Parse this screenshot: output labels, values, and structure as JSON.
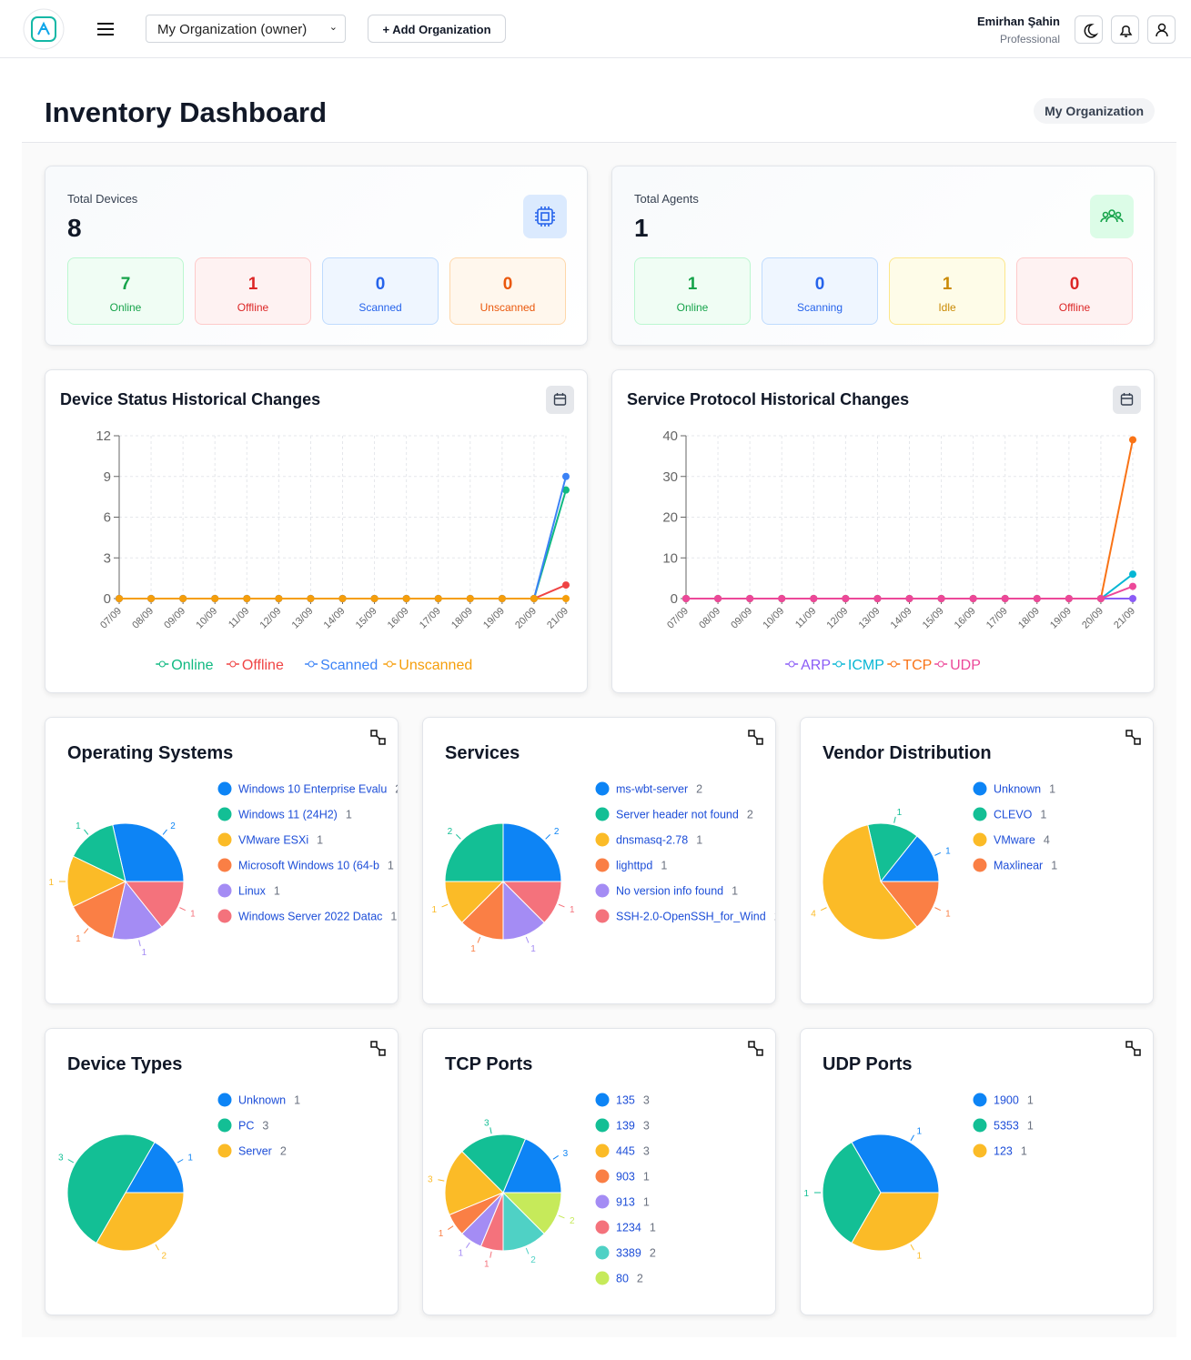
{
  "header": {
    "org_select": "My Organization (owner)",
    "add_button": "+ Add Organization",
    "user_name": "Emirhan Şahin",
    "user_plan": "Professional"
  },
  "page": {
    "title": "Inventory Dashboard",
    "badge": "My Organization"
  },
  "stats": [
    {
      "label": "Total Devices",
      "value": 8,
      "items": [
        {
          "value": 7,
          "label": "Online"
        },
        {
          "value": 1,
          "label": "Offline"
        },
        {
          "value": 0,
          "label": "Scanned"
        },
        {
          "value": 0,
          "label": "Unscanned"
        }
      ]
    },
    {
      "label": "Total Agents",
      "value": 1,
      "items": [
        {
          "value": 1,
          "label": "Online"
        },
        {
          "value": 0,
          "label": "Scanning"
        },
        {
          "value": 1,
          "label": "Idle"
        },
        {
          "value": 0,
          "label": "Offline"
        }
      ]
    }
  ],
  "chart_data": [
    {
      "type": "line",
      "title": "Device Status Historical Changes",
      "x": [
        "07/09",
        "08/09",
        "09/09",
        "10/09",
        "11/09",
        "12/09",
        "13/09",
        "14/09",
        "15/09",
        "16/09",
        "17/09",
        "18/09",
        "19/09",
        "20/09",
        "21/09"
      ],
      "series": [
        {
          "name": "Online",
          "color": "#10b981",
          "values": [
            0,
            0,
            0,
            0,
            0,
            0,
            0,
            0,
            0,
            0,
            0,
            0,
            0,
            0,
            8
          ]
        },
        {
          "name": "Offline",
          "color": "#ef4444",
          "values": [
            0,
            0,
            0,
            0,
            0,
            0,
            0,
            0,
            0,
            0,
            0,
            0,
            0,
            0,
            1
          ]
        },
        {
          "name": "Scanned",
          "color": "#3b82f6",
          "values": [
            0,
            0,
            0,
            0,
            0,
            0,
            0,
            0,
            0,
            0,
            0,
            0,
            0,
            0,
            9
          ]
        },
        {
          "name": "Unscanned",
          "color": "#f59e0b",
          "values": [
            0,
            0,
            0,
            0,
            0,
            0,
            0,
            0,
            0,
            0,
            0,
            0,
            0,
            0,
            0
          ]
        }
      ],
      "ylim": [
        0,
        12
      ],
      "yticks": [
        0,
        3,
        6,
        9,
        12
      ],
      "grid": true,
      "legend": "bottom"
    },
    {
      "type": "line",
      "title": "Service Protocol Historical Changes",
      "x": [
        "07/09",
        "08/09",
        "09/09",
        "10/09",
        "11/09",
        "12/09",
        "13/09",
        "14/09",
        "15/09",
        "16/09",
        "17/09",
        "18/09",
        "19/09",
        "20/09",
        "21/09"
      ],
      "series": [
        {
          "name": "ARP",
          "color": "#8b5cf6",
          "values": [
            0,
            0,
            0,
            0,
            0,
            0,
            0,
            0,
            0,
            0,
            0,
            0,
            0,
            0,
            0
          ]
        },
        {
          "name": "ICMP",
          "color": "#06b6d4",
          "values": [
            0,
            0,
            0,
            0,
            0,
            0,
            0,
            0,
            0,
            0,
            0,
            0,
            0,
            0,
            6
          ]
        },
        {
          "name": "TCP",
          "color": "#f97316",
          "values": [
            0,
            0,
            0,
            0,
            0,
            0,
            0,
            0,
            0,
            0,
            0,
            0,
            0,
            0,
            39
          ]
        },
        {
          "name": "UDP",
          "color": "#ec4899",
          "values": [
            0,
            0,
            0,
            0,
            0,
            0,
            0,
            0,
            0,
            0,
            0,
            0,
            0,
            0,
            3
          ]
        }
      ],
      "ylim": [
        0,
        40
      ],
      "yticks": [
        0,
        10,
        20,
        30,
        40
      ],
      "grid": true,
      "legend": "bottom"
    },
    {
      "type": "pie",
      "title": "Operating Systems",
      "categories": [
        "Windows 10 Enterprise Evalu",
        "Windows 11 (24H2)",
        "VMware ESXi",
        "Microsoft Windows 10 (64-b",
        "Linux",
        "Windows Server 2022 Datac"
      ],
      "values": [
        2,
        1,
        1,
        1,
        1,
        1
      ],
      "colors": [
        "#0d84f5",
        "#13bf95",
        "#fbbb27",
        "#fa7f45",
        "#a48cf4",
        "#f4727c"
      ]
    },
    {
      "type": "pie",
      "title": "Services",
      "categories": [
        "ms-wbt-server",
        "Server header not found",
        "dnsmasq-2.78",
        "lighttpd",
        "No version info found",
        "SSH-2.0-OpenSSH_for_Wind"
      ],
      "values": [
        2,
        2,
        1,
        1,
        1,
        1
      ],
      "colors": [
        "#0d84f5",
        "#13bf95",
        "#fbbb27",
        "#fa7f45",
        "#a48cf4",
        "#f4727c"
      ]
    },
    {
      "type": "pie",
      "title": "Vendor Distribution",
      "categories": [
        "Unknown",
        "CLEVO",
        "VMware",
        "Maxlinear"
      ],
      "values": [
        1,
        1,
        4,
        1
      ],
      "colors": [
        "#0d84f5",
        "#13bf95",
        "#fbbb27",
        "#fa7f45"
      ]
    },
    {
      "type": "pie",
      "title": "Device Types",
      "categories": [
        "Unknown",
        "PC",
        "Server"
      ],
      "values": [
        1,
        3,
        2
      ],
      "colors": [
        "#0d84f5",
        "#13bf95",
        "#fbbb27"
      ]
    },
    {
      "type": "pie",
      "title": "TCP Ports",
      "categories": [
        "135",
        "139",
        "445",
        "903",
        "913",
        "1234",
        "3389",
        "80"
      ],
      "values": [
        3,
        3,
        3,
        1,
        1,
        1,
        2,
        2
      ],
      "colors": [
        "#0d84f5",
        "#13bf95",
        "#fbbb27",
        "#fa7f45",
        "#a48cf4",
        "#f4727c",
        "#4fd1c5",
        "#c6ea5a"
      ]
    },
    {
      "type": "pie",
      "title": "UDP Ports",
      "categories": [
        "1900",
        "5353",
        "123"
      ],
      "values": [
        1,
        1,
        1
      ],
      "colors": [
        "#0d84f5",
        "#13bf95",
        "#fbbb27"
      ]
    }
  ]
}
